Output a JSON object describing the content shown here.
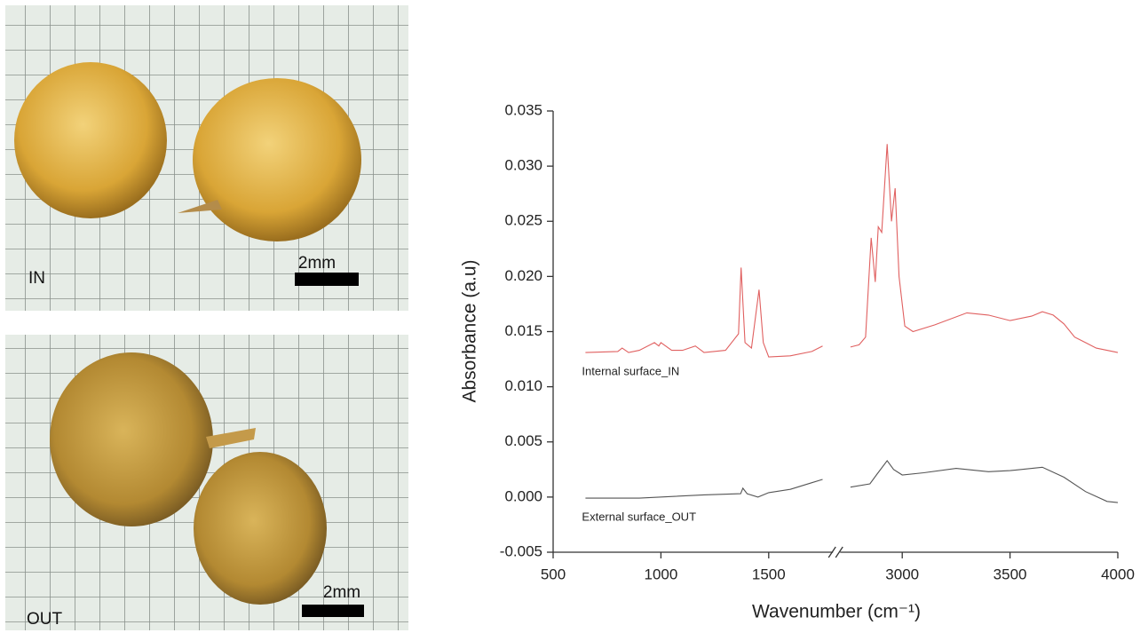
{
  "photos": [
    {
      "label": "IN",
      "scale_label": "2mm"
    },
    {
      "label": "OUT",
      "scale_label": "2mm"
    }
  ],
  "chart_data": {
    "type": "line",
    "xlabel": "Wavenumber (cm⁻¹)",
    "ylabel": "Absorbance (a.u)",
    "xlim": [
      500,
      4000
    ],
    "xbreak": [
      1790,
      2720
    ],
    "ylim": [
      -0.005,
      0.035
    ],
    "xticks": [
      500,
      1000,
      1500,
      3000,
      3500,
      4000
    ],
    "yticks": [
      -0.005,
      {
        "value": 0,
        "label": "0.000"
      },
      0.005,
      {
        "value": 0.01,
        "label": "0.010"
      },
      0.015,
      {
        "value": 0.02,
        "label": "0.020"
      },
      0.025,
      {
        "value": 0.03,
        "label": "0.030"
      },
      0.035
    ],
    "series": [
      {
        "name": "Internal surface_IN",
        "color": "#e06060",
        "x": [
          650,
          800,
          820,
          850,
          900,
          970,
          990,
          1000,
          1050,
          1100,
          1160,
          1200,
          1300,
          1360,
          1372,
          1390,
          1420,
          1455,
          1475,
          1500,
          1600,
          1700,
          1750,
          null,
          2760,
          2800,
          2830,
          2856,
          2875,
          2889,
          2905,
          2930,
          2950,
          2967,
          2985,
          3012,
          3050,
          3150,
          3300,
          3400,
          3500,
          3600,
          3650,
          3700,
          3750,
          3800,
          3850,
          3900,
          4000
        ],
        "values": [
          0.0131,
          0.0132,
          0.0135,
          0.0131,
          0.0133,
          0.014,
          0.0137,
          0.014,
          0.0133,
          0.0133,
          0.0137,
          0.0131,
          0.0133,
          0.0148,
          0.0208,
          0.014,
          0.0135,
          0.0188,
          0.014,
          0.0127,
          0.0128,
          0.0132,
          0.0137,
          null,
          0.0136,
          0.0138,
          0.0145,
          0.0235,
          0.0195,
          0.0245,
          0.024,
          0.032,
          0.025,
          0.028,
          0.02,
          0.0155,
          0.015,
          0.0156,
          0.0167,
          0.0165,
          0.016,
          0.0164,
          0.0168,
          0.0165,
          0.0157,
          0.0145,
          0.014,
          0.0135,
          0.0131
        ]
      },
      {
        "name": "External surface_OUT",
        "color": "#555555",
        "x": [
          650,
          900,
          1200,
          1370,
          1380,
          1400,
          1450,
          1500,
          1600,
          1700,
          1750,
          null,
          2760,
          2850,
          2880,
          2930,
          2960,
          3000,
          3100,
          3250,
          3400,
          3500,
          3650,
          3750,
          3850,
          3950,
          4000
        ],
        "values": [
          -0.0001,
          -0.0001,
          0.0002,
          0.0003,
          0.0008,
          0.0003,
          0.0,
          0.0004,
          0.0007,
          0.0013,
          0.0016,
          null,
          0.0009,
          0.0012,
          0.002,
          0.0033,
          0.0025,
          0.002,
          0.0022,
          0.0026,
          0.0023,
          0.0024,
          0.0027,
          0.0018,
          0.0005,
          -0.0004,
          -0.0005
        ]
      }
    ]
  }
}
